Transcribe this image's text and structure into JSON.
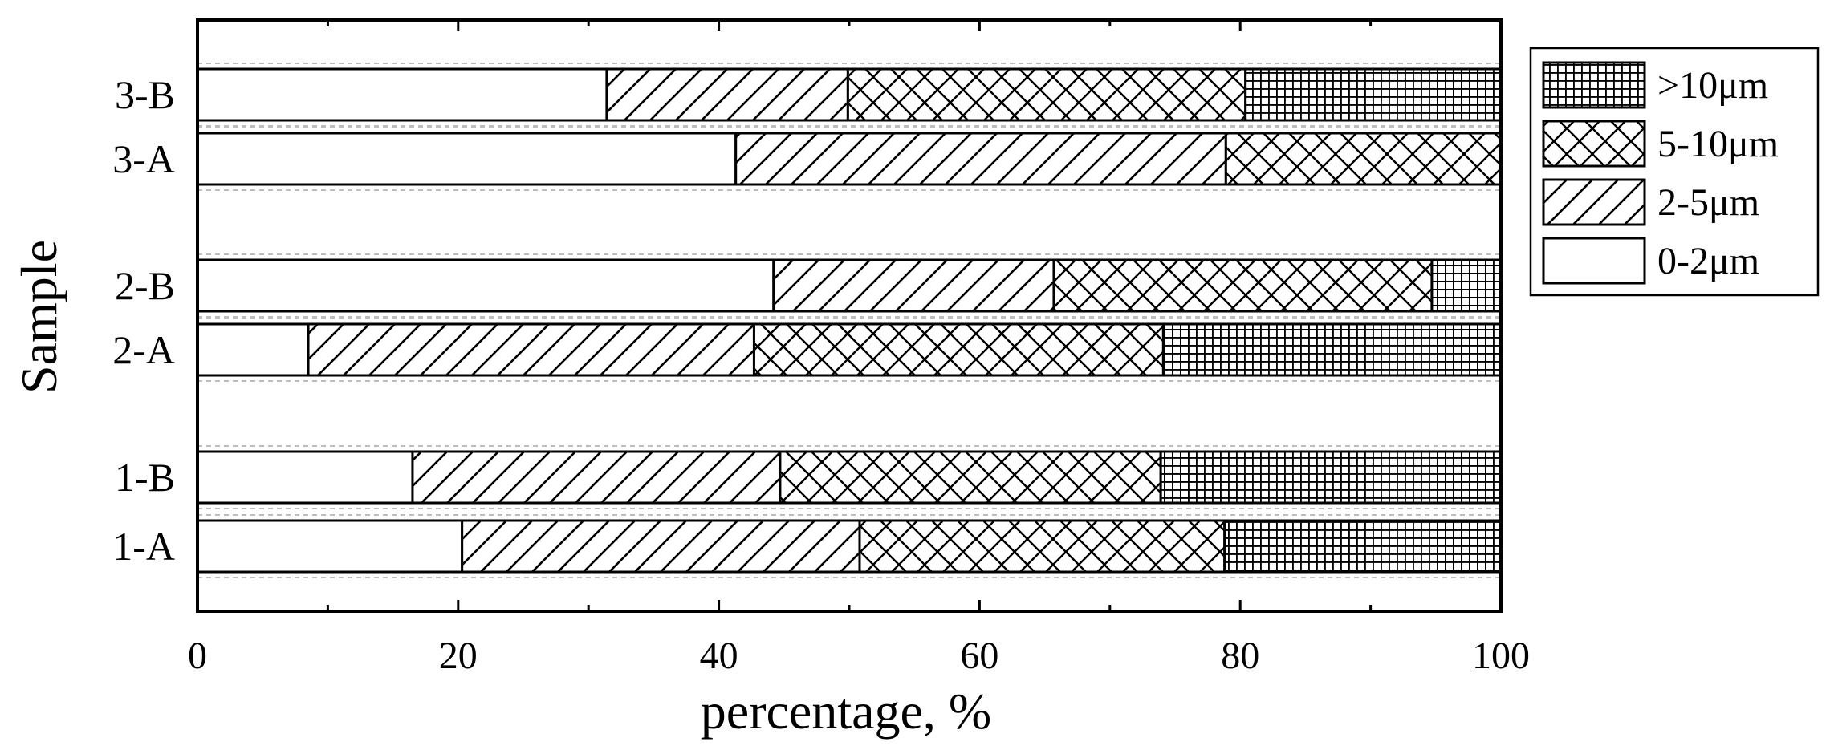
{
  "chart_data": {
    "type": "bar",
    "orientation": "horizontal",
    "stacked": true,
    "xlabel": "percentage, %",
    "ylabel": "Sample",
    "xlim": [
      0,
      100
    ],
    "xticks": [
      0,
      20,
      40,
      60,
      80,
      100
    ],
    "categories": [
      "1-A",
      "1-B",
      "2-A",
      "2-B",
      "3-A",
      "3-B"
    ],
    "series": [
      {
        "name": "0-2μm",
        "pattern": "empty",
        "values": [
          20.3,
          16.5,
          8.5,
          44.2,
          41.3,
          31.4
        ]
      },
      {
        "name": "2-5μm",
        "pattern": "diagonal-hatch",
        "values": [
          30.5,
          28.2,
          34.2,
          21.5,
          37.6,
          18.5
        ]
      },
      {
        "name": "5-10μm",
        "pattern": "cross-hatch",
        "values": [
          28.0,
          29.2,
          31.4,
          29.0,
          21.1,
          30.5
        ]
      },
      {
        "name": ">10μm",
        "pattern": "grid",
        "values": [
          21.2,
          26.1,
          25.9,
          5.3,
          0.0,
          19.6
        ]
      }
    ],
    "legend_order": [
      ">10μm",
      "5-10μm",
      "2-5μm",
      "0-2μm"
    ],
    "legend_position": "right",
    "grid": false
  }
}
